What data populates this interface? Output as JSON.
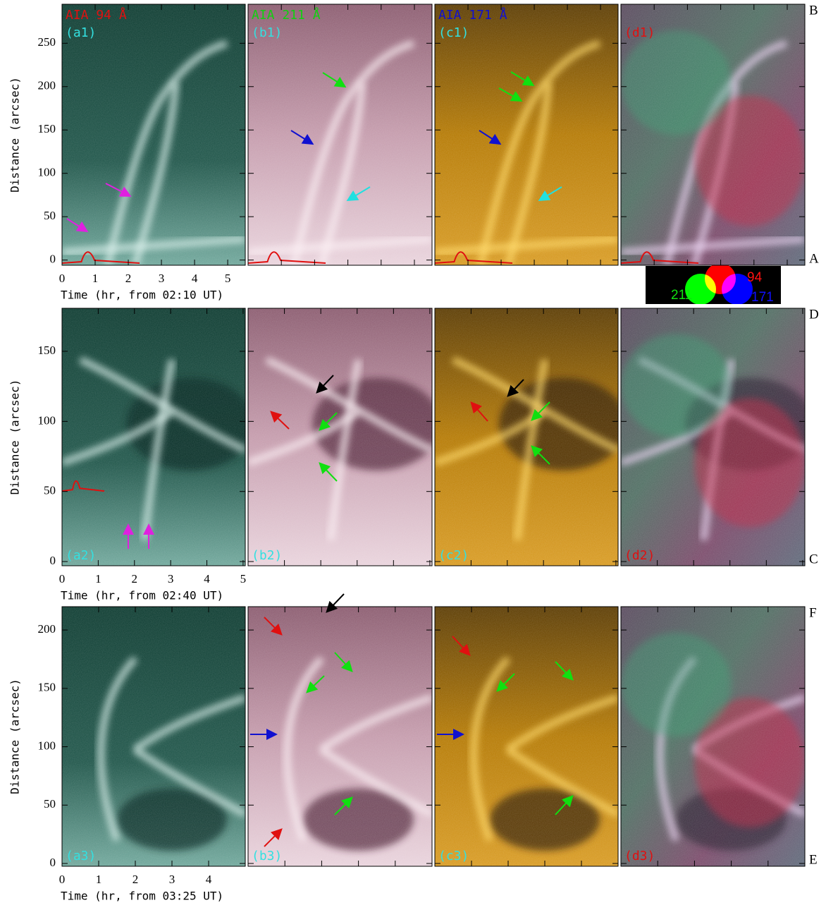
{
  "chart_data": [
    {
      "type": "image",
      "xlabel": "Time (hr, from 02:10 UT)",
      "ylabel": "Distance (arcsec)",
      "xlim": [
        0,
        5.53
      ],
      "xticks": [
        0,
        1,
        2,
        3,
        4,
        5
      ],
      "ylim": [
        -6,
        295
      ],
      "yticks": [
        0,
        50,
        100,
        150,
        200,
        250
      ],
      "panels": [
        {
          "label": "(a1)",
          "label_color": "#33e0e0",
          "title": "AIA 94 Å",
          "title_color": "#e01010"
        },
        {
          "label": "(b1)",
          "label_color": "#33e0e0",
          "title": "AIA 211 Å",
          "title_color": "#10d010"
        },
        {
          "label": "(c1)",
          "label_color": "#33e0e0",
          "title": "AIA 171 Å",
          "title_color": "#1010d0"
        },
        {
          "label": "(d1)",
          "label_color": "#e01010"
        }
      ],
      "right_labels": {
        "top": "B",
        "bottom": "A"
      }
    },
    {
      "type": "image",
      "xlabel": "Time (hr, from 02:40 UT)",
      "ylabel": "Distance (arcsec)",
      "xlim": [
        0,
        5.06
      ],
      "xticks": [
        0,
        1,
        2,
        3,
        4,
        5
      ],
      "ylim": [
        -3,
        180.7
      ],
      "yticks": [
        0,
        50,
        100,
        150
      ],
      "panels": [
        {
          "label": "(a2)",
          "label_color": "#33e0e0"
        },
        {
          "label": "(b2)",
          "label_color": "#33e0e0"
        },
        {
          "label": "(c2)",
          "label_color": "#33e0e0"
        },
        {
          "label": "(d2)",
          "label_color": "#e01010"
        }
      ],
      "right_labels": {
        "top": "D",
        "bottom": "C"
      }
    },
    {
      "type": "image",
      "xlabel": "Time (hr, from 03:25 UT)",
      "ylabel": "Distance (arcsec)",
      "xlim": [
        0,
        5.0
      ],
      "xticks": [
        0,
        1,
        2,
        3,
        4
      ],
      "ylim": [
        -2.4,
        220
      ],
      "yticks": [
        0,
        50,
        100,
        150,
        200
      ],
      "panels": [
        {
          "label": "(a3)",
          "label_color": "#33e0e0"
        },
        {
          "label": "(b3)",
          "label_color": "#33e0e0"
        },
        {
          "label": "(c3)",
          "label_color": "#33e0e0"
        },
        {
          "label": "(d3)",
          "label_color": "#e01010"
        }
      ],
      "right_labels": {
        "top": "F",
        "bottom": "E"
      }
    }
  ],
  "legend": {
    "labels": [
      "94",
      "211",
      "171"
    ],
    "colors": [
      "#ff1010",
      "#10e010",
      "#1010ff"
    ]
  }
}
